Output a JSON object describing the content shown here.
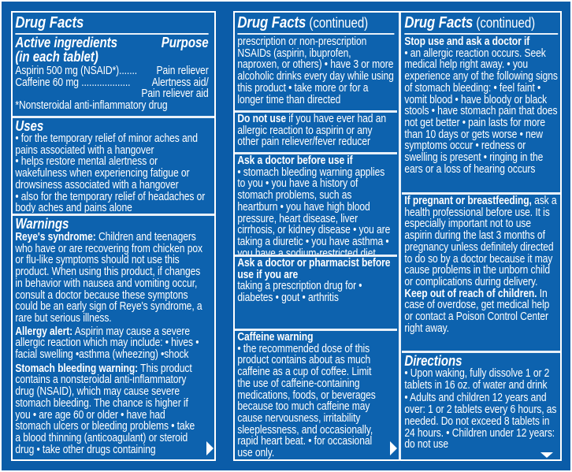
{
  "colors": {
    "background": "#0b5ca8",
    "panel": "#0d62ae",
    "text": "#ffffff"
  },
  "panel1": {
    "title": "Drug Facts",
    "active": {
      "heading1": "Active ingredients",
      "heading2": "(in each tablet)",
      "purpose": "Purpose",
      "rows": [
        {
          "ingredient": "Aspirin 500 mg (NSAID*).......",
          "purpose": "Pain reliever"
        },
        {
          "ingredient": "Caffeine 60 mg ...................",
          "purpose": "Alertness aid/"
        },
        {
          "ingredient": "",
          "purpose": "Pain reliever aid"
        }
      ],
      "footnote": "*Nonsteroidal anti-inflammatory drug"
    },
    "uses": {
      "heading": "Uses",
      "items": [
        "• for the temporary relief of minor aches and pains associated with a hangover",
        "• helps restore mental alertness or wakefulness when experiencing fatigue or drowsiness associated with a hangover",
        "• also for the temporary relief of headaches or body aches and pains alone"
      ]
    },
    "warnings": {
      "heading": "Warnings",
      "reye_lead": "Reye's syndrome:",
      "reye_text": " Children and teenagers who have or are recovering from chicken pox or flu-like symptoms should not use this product.  When using this product, if changes in behavior with nausea and vomiting occur, consult a doctor because these symptons could be an early sign of Reye's syndrome, a rare but serious illness.",
      "allergy_lead": "Allergy alert:",
      "allergy_text": " Aspirin may cause a severe allergic reaction which may include: • hives • facial swelling •asthma (wheezing) •shock",
      "stomach_lead": "Stomach bleeding warning:",
      "stomach_text": " This product contains a nonsteroidal anti-inflammatory drug (NSAID), which may cause severe stomach bleeding. The chance is higher if you  • are age 60 or older  • have had stomach ulcers or bleeding problems • take a blood thinning (anticoagulant) or steroid drug • take other drugs containing"
    }
  },
  "panel2": {
    "title": "Drug Facts",
    "title_suffix": " (continued)",
    "cont_text": "prescription or non-prescription NSAIDs (aspirin, ibuprofen, naproxen, or others)  • have 3 or more alcoholic drinks every day while using this product  • take more or for a longer time than directed",
    "donot_lead": "Do not use",
    "donot_text": " if you have ever had an allergic reaction to aspirin or any other pain reliever/fever reducer",
    "ask_lead": "Ask a doctor before use if",
    "ask_text": "• stomach bleeding warning applies to you  • you have a history of stomach problems, such as heartburn  • you have high blood pressure, heart disease, liver cirrhosis, or kidney disease  • you are taking a diuretic  • you have asthma  • you have a sodium-restricted diet",
    "pharm_lead": "Ask a doctor or pharmacist before use if you are",
    "pharm_text": "taking a prescription drug for  •  diabetes    • gout    •  arthritis",
    "caffeine_lead": "Caffeine warning",
    "caffeine_text": "• the recommended dose of this product contains about as much caffeine as a cup of coffee.  Limit the use of caffeine-containing medications, foods, or beverages because too much caffeine may cause nervousness, irritability sleeplessness, and occasionally, rapid heart beat.  • for occasional use only."
  },
  "panel3": {
    "title": "Drug Facts",
    "title_suffix": " (continued)",
    "stop_lead": "Stop use and ask a doctor if",
    "stop_text": "• an allergic reaction occurs. Seek medical help right away.  • you experience any of the following signs of stomach bleeding:  • feel faint  • vomit blood  • have bloody or black stools  • have stomach pain that does not get better • pain lasts for more than 10 days or gets worse  • new symptoms occur  • redness or swelling is present  • ringing in the ears or a loss of hearing occurs",
    "preg_lead": "If pregnant or breastfeeding,",
    "preg_text": " ask a health professional before use.  It is especially important not to use aspirin during the last 3 months of pregnancy unless definitely directed to do so by a doctor because it may cause problems in the unborn child or complications during delivery.",
    "keep_lead": "Keep out of reach of children.",
    "keep_text": " In case of overdose, get medical help or contact a Poison Control Center right away.",
    "directions": {
      "heading": "Directions",
      "items": [
        "• Upon waking, fully dissolve 1 or 2 tablets in 16 oz. of water and drink",
        "• Adults and children 12 years and over: 1 or 2 tablets every 6 hours, as needed. Do not exceed 8 tablets in 24 hours.  • Children under 12 years: do not use"
      ]
    }
  },
  "icons": {
    "continue": "arrow-right-icon",
    "more": "arrow-down-icon"
  }
}
